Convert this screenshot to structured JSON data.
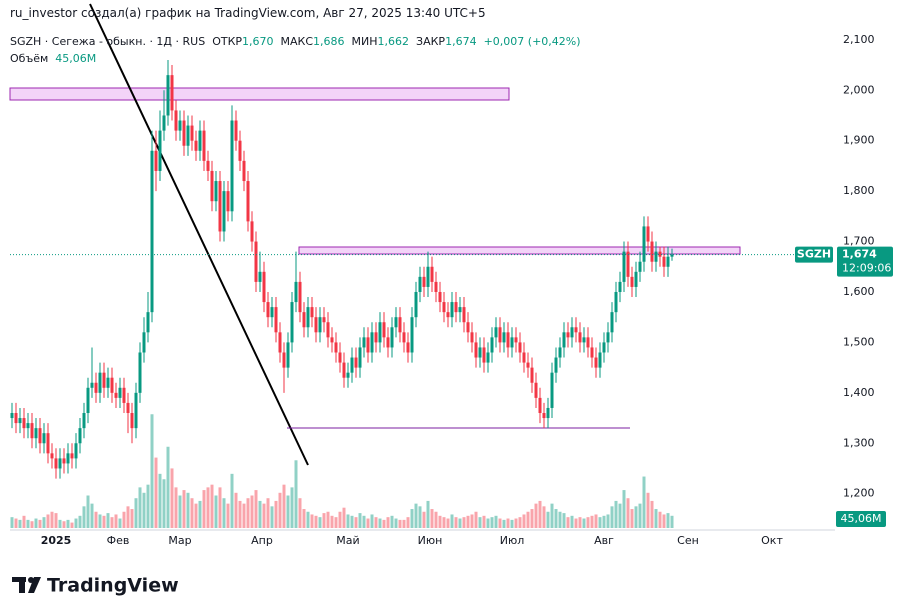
{
  "header": {
    "author_line": "ru_investor создал(а) график на TradingView.com, Авг 27, 2025 13:40 UTC+5",
    "symbol_line": "SGZH · Сегежа - обыкн. · 1Д · RUS",
    "open_label": "ОТКР",
    "open": "1,670",
    "high_label": "МАКС",
    "high": "1,686",
    "low_label": "МИН",
    "low": "1,662",
    "close_label": "ЗАКР",
    "close": "1,674",
    "change": "+0,007 (+0,42%)",
    "volume_label": "Объём",
    "volume": "45,06M"
  },
  "logo": "TradingView",
  "chart_data": {
    "type": "candlestick",
    "up_color": "#089981",
    "down_color": "#f23645",
    "ylim": [
      1.128,
      2.179
    ],
    "yticks": [
      {
        "value": 2.1,
        "label": "2,100"
      },
      {
        "value": 2.0,
        "label": "2,000"
      },
      {
        "value": 1.9,
        "label": "1,900"
      },
      {
        "value": 1.8,
        "label": "1,800"
      },
      {
        "value": 1.7,
        "label": "1,700"
      },
      {
        "value": 1.6,
        "label": "1,600"
      },
      {
        "value": 1.5,
        "label": "1,500"
      },
      {
        "value": 1.4,
        "label": "1,400"
      },
      {
        "value": 1.3,
        "label": "1,300"
      },
      {
        "value": 1.2,
        "label": "1,200"
      }
    ],
    "xlim": [
      -0.5,
      205.75
    ],
    "xticks": [
      {
        "value": 11,
        "label": "2025"
      },
      {
        "value": 26.5,
        "label": "Фев"
      },
      {
        "value": 42,
        "label": "Мар"
      },
      {
        "value": 62.5,
        "label": "Апр"
      },
      {
        "value": 84,
        "label": "Май"
      },
      {
        "value": 104.5,
        "label": "Июн"
      },
      {
        "value": 125,
        "label": "Июл"
      },
      {
        "value": 148,
        "label": "Авг"
      },
      {
        "value": 169,
        "label": "Сен"
      },
      {
        "value": 190,
        "label": "Окт"
      }
    ],
    "open": [
      1.35,
      1.36,
      1.34,
      1.35,
      1.33,
      1.34,
      1.31,
      1.33,
      1.3,
      1.32,
      1.28,
      1.27,
      1.25,
      1.27,
      1.26,
      1.28,
      1.27,
      1.3,
      1.33,
      1.36,
      1.41,
      1.42,
      1.4,
      1.44,
      1.41,
      1.43,
      1.4,
      1.39,
      1.41,
      1.38,
      1.36,
      1.33,
      1.4,
      1.48,
      1.52,
      1.56,
      1.88,
      1.84,
      1.92,
      1.95,
      2.03,
      1.96,
      1.92,
      1.94,
      1.89,
      1.93,
      1.9,
      1.88,
      1.92,
      1.86,
      1.84,
      1.78,
      1.82,
      1.72,
      1.8,
      1.76,
      1.94,
      1.9,
      1.86,
      1.82,
      1.74,
      1.7,
      1.62,
      1.64,
      1.58,
      1.55,
      1.57,
      1.52,
      1.48,
      1.45,
      1.5,
      1.58,
      1.62,
      1.56,
      1.53,
      1.57,
      1.55,
      1.52,
      1.55,
      1.54,
      1.51,
      1.5,
      1.48,
      1.46,
      1.43,
      1.44,
      1.47,
      1.45,
      1.49,
      1.51,
      1.48,
      1.52,
      1.5,
      1.54,
      1.51,
      1.49,
      1.53,
      1.55,
      1.52,
      1.5,
      1.48,
      1.55,
      1.6,
      1.63,
      1.61,
      1.65,
      1.62,
      1.6,
      1.58,
      1.56,
      1.55,
      1.58,
      1.56,
      1.57,
      1.54,
      1.52,
      1.5,
      1.47,
      1.49,
      1.46,
      1.48,
      1.51,
      1.53,
      1.5,
      1.52,
      1.49,
      1.51,
      1.5,
      1.48,
      1.46,
      1.45,
      1.42,
      1.39,
      1.36,
      1.35,
      1.37,
      1.44,
      1.47,
      1.49,
      1.52,
      1.51,
      1.53,
      1.52,
      1.5,
      1.51,
      1.49,
      1.47,
      1.45,
      1.48,
      1.5,
      1.52,
      1.56,
      1.6,
      1.62,
      1.68,
      1.63,
      1.61,
      1.64,
      1.66,
      1.73,
      1.7,
      1.66,
      1.68,
      1.67,
      1.65,
      1.67
    ],
    "high": [
      1.38,
      1.38,
      1.37,
      1.37,
      1.36,
      1.36,
      1.35,
      1.35,
      1.34,
      1.34,
      1.3,
      1.29,
      1.29,
      1.29,
      1.3,
      1.3,
      1.32,
      1.35,
      1.38,
      1.43,
      1.49,
      1.44,
      1.46,
      1.46,
      1.45,
      1.45,
      1.42,
      1.43,
      1.43,
      1.4,
      1.38,
      1.42,
      1.5,
      1.55,
      1.6,
      1.92,
      1.92,
      1.96,
      2.0,
      2.06,
      2.05,
      1.98,
      1.96,
      1.96,
      1.95,
      1.95,
      1.92,
      1.94,
      1.94,
      1.88,
      1.86,
      1.84,
      1.84,
      1.82,
      1.82,
      1.97,
      1.96,
      1.92,
      1.88,
      1.84,
      1.76,
      1.72,
      1.68,
      1.66,
      1.6,
      1.59,
      1.59,
      1.54,
      1.5,
      1.52,
      1.6,
      1.68,
      1.64,
      1.58,
      1.59,
      1.59,
      1.57,
      1.57,
      1.57,
      1.56,
      1.53,
      1.52,
      1.5,
      1.48,
      1.46,
      1.49,
      1.49,
      1.51,
      1.53,
      1.53,
      1.54,
      1.54,
      1.56,
      1.56,
      1.53,
      1.55,
      1.57,
      1.57,
      1.54,
      1.52,
      1.57,
      1.62,
      1.65,
      1.65,
      1.68,
      1.67,
      1.64,
      1.62,
      1.6,
      1.58,
      1.6,
      1.6,
      1.59,
      1.59,
      1.56,
      1.54,
      1.52,
      1.51,
      1.51,
      1.5,
      1.53,
      1.55,
      1.55,
      1.54,
      1.54,
      1.53,
      1.53,
      1.52,
      1.5,
      1.48,
      1.47,
      1.44,
      1.41,
      1.38,
      1.39,
      1.46,
      1.49,
      1.51,
      1.54,
      1.54,
      1.55,
      1.55,
      1.54,
      1.53,
      1.53,
      1.51,
      1.49,
      1.5,
      1.52,
      1.54,
      1.58,
      1.62,
      1.64,
      1.7,
      1.7,
      1.65,
      1.66,
      1.68,
      1.75,
      1.75,
      1.72,
      1.7,
      1.69,
      1.69,
      1.69,
      1.686
    ],
    "low": [
      1.33,
      1.32,
      1.32,
      1.31,
      1.31,
      1.29,
      1.29,
      1.28,
      1.28,
      1.26,
      1.25,
      1.23,
      1.23,
      1.24,
      1.24,
      1.25,
      1.25,
      1.28,
      1.31,
      1.34,
      1.39,
      1.38,
      1.38,
      1.39,
      1.39,
      1.38,
      1.37,
      1.37,
      1.36,
      1.32,
      1.3,
      1.31,
      1.38,
      1.46,
      1.5,
      1.54,
      1.8,
      1.82,
      1.9,
      1.93,
      1.94,
      1.9,
      1.9,
      1.87,
      1.87,
      1.88,
      1.86,
      1.86,
      1.84,
      1.82,
      1.76,
      1.76,
      1.7,
      1.7,
      1.74,
      1.74,
      1.88,
      1.84,
      1.8,
      1.72,
      1.68,
      1.6,
      1.6,
      1.56,
      1.53,
      1.53,
      1.5,
      1.46,
      1.4,
      1.43,
      1.48,
      1.56,
      1.54,
      1.51,
      1.51,
      1.53,
      1.5,
      1.5,
      1.52,
      1.49,
      1.48,
      1.46,
      1.44,
      1.41,
      1.41,
      1.42,
      1.43,
      1.43,
      1.47,
      1.46,
      1.46,
      1.48,
      1.48,
      1.49,
      1.47,
      1.47,
      1.51,
      1.5,
      1.48,
      1.46,
      1.46,
      1.53,
      1.58,
      1.59,
      1.59,
      1.6,
      1.58,
      1.56,
      1.54,
      1.53,
      1.53,
      1.54,
      1.54,
      1.52,
      1.5,
      1.48,
      1.45,
      1.45,
      1.44,
      1.44,
      1.46,
      1.49,
      1.48,
      1.48,
      1.47,
      1.47,
      1.48,
      1.46,
      1.44,
      1.43,
      1.4,
      1.37,
      1.34,
      1.33,
      1.33,
      1.35,
      1.42,
      1.45,
      1.47,
      1.49,
      1.49,
      1.5,
      1.48,
      1.48,
      1.47,
      1.45,
      1.43,
      1.43,
      1.46,
      1.48,
      1.5,
      1.54,
      1.58,
      1.6,
      1.61,
      1.59,
      1.59,
      1.62,
      1.64,
      1.68,
      1.64,
      1.64,
      1.65,
      1.63,
      1.63,
      1.662
    ],
    "close": [
      1.36,
      1.34,
      1.35,
      1.33,
      1.34,
      1.31,
      1.33,
      1.3,
      1.32,
      1.28,
      1.27,
      1.25,
      1.27,
      1.26,
      1.28,
      1.27,
      1.3,
      1.33,
      1.36,
      1.41,
      1.42,
      1.4,
      1.44,
      1.41,
      1.43,
      1.4,
      1.39,
      1.41,
      1.38,
      1.36,
      1.33,
      1.4,
      1.48,
      1.52,
      1.56,
      1.88,
      1.84,
      1.92,
      1.95,
      2.03,
      1.96,
      1.92,
      1.94,
      1.89,
      1.93,
      1.9,
      1.88,
      1.92,
      1.86,
      1.84,
      1.78,
      1.82,
      1.72,
      1.8,
      1.76,
      1.94,
      1.9,
      1.86,
      1.82,
      1.74,
      1.7,
      1.62,
      1.64,
      1.58,
      1.55,
      1.57,
      1.52,
      1.48,
      1.45,
      1.5,
      1.58,
      1.62,
      1.56,
      1.53,
      1.57,
      1.55,
      1.52,
      1.55,
      1.54,
      1.51,
      1.5,
      1.48,
      1.46,
      1.43,
      1.44,
      1.47,
      1.45,
      1.49,
      1.51,
      1.48,
      1.52,
      1.5,
      1.54,
      1.51,
      1.49,
      1.53,
      1.55,
      1.52,
      1.5,
      1.48,
      1.55,
      1.6,
      1.63,
      1.61,
      1.65,
      1.62,
      1.6,
      1.58,
      1.56,
      1.55,
      1.58,
      1.56,
      1.57,
      1.54,
      1.52,
      1.5,
      1.47,
      1.49,
      1.46,
      1.48,
      1.51,
      1.53,
      1.5,
      1.52,
      1.49,
      1.51,
      1.5,
      1.48,
      1.46,
      1.45,
      1.42,
      1.39,
      1.36,
      1.35,
      1.37,
      1.44,
      1.47,
      1.49,
      1.52,
      1.51,
      1.53,
      1.52,
      1.5,
      1.51,
      1.49,
      1.47,
      1.45,
      1.48,
      1.5,
      1.52,
      1.56,
      1.6,
      1.62,
      1.68,
      1.63,
      1.61,
      1.64,
      1.66,
      1.73,
      1.7,
      1.66,
      1.68,
      1.67,
      1.65,
      1.67,
      1.674
    ],
    "volume": [
      40,
      35,
      30,
      45,
      30,
      25,
      35,
      30,
      40,
      50,
      60,
      55,
      30,
      25,
      30,
      20,
      35,
      45,
      80,
      120,
      90,
      60,
      50,
      45,
      55,
      40,
      50,
      35,
      60,
      80,
      70,
      110,
      150,
      130,
      160,
      420,
      260,
      200,
      180,
      300,
      220,
      150,
      120,
      140,
      130,
      110,
      90,
      100,
      140,
      150,
      160,
      120,
      150,
      110,
      90,
      200,
      130,
      100,
      90,
      110,
      120,
      140,
      100,
      90,
      110,
      80,
      100,
      130,
      160,
      120,
      150,
      250,
      110,
      70,
      60,
      50,
      45,
      40,
      55,
      60,
      45,
      40,
      60,
      75,
      50,
      45,
      40,
      55,
      45,
      35,
      50,
      40,
      35,
      30,
      40,
      45,
      35,
      30,
      30,
      40,
      70,
      90,
      80,
      60,
      100,
      70,
      60,
      45,
      40,
      35,
      50,
      40,
      35,
      40,
      45,
      50,
      60,
      40,
      45,
      35,
      40,
      45,
      35,
      30,
      35,
      30,
      35,
      40,
      50,
      60,
      70,
      90,
      100,
      80,
      60,
      90,
      70,
      60,
      55,
      40,
      45,
      35,
      40,
      35,
      40,
      45,
      50,
      40,
      45,
      50,
      80,
      100,
      90,
      140,
      110,
      70,
      80,
      90,
      190,
      130,
      100,
      70,
      60,
      50,
      55,
      45.06
    ],
    "volume_lim": [
      0,
      480
    ],
    "volume_last_label": "45,06M",
    "symbol_tag": "SGZH",
    "last_price_label": "1,674",
    "countdown": "12:09:06"
  }
}
